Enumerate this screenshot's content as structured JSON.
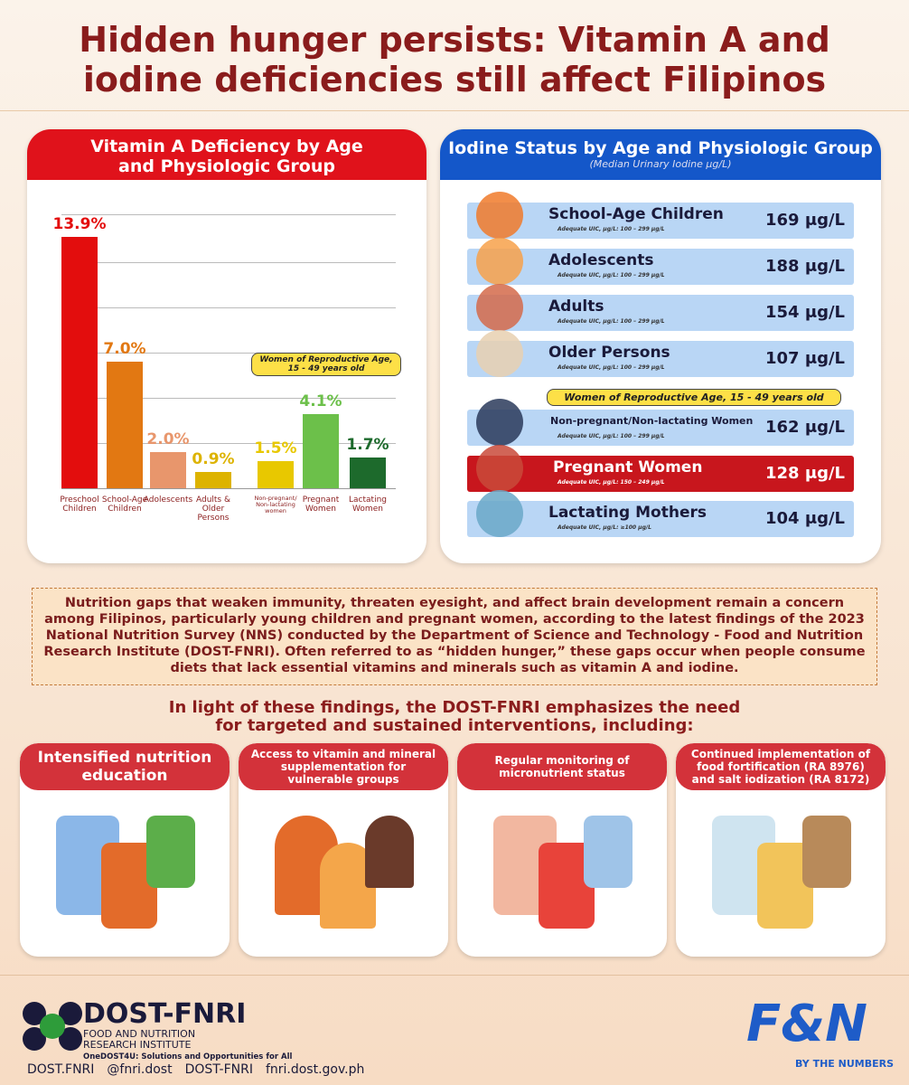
{
  "title": "Hidden hunger persists: Vitamin A and iodine deficiencies still affect Filipinos",
  "chart_data": {
    "type": "bar",
    "title": "Vitamin A Deficiency by Age and Physiologic Group",
    "categories": [
      "Preschool Children",
      "School-Age Children",
      "Adolescents",
      "Adults & Older Persons",
      "Non-pregnant/ Non-lactating women",
      "Pregnant Women",
      "Lactating Women"
    ],
    "values": [
      13.9,
      7.0,
      2.0,
      0.9,
      1.5,
      4.1,
      1.7
    ],
    "value_labels": [
      "13.9%",
      "7.0%",
      "2.0%",
      "0.9%",
      "1.5%",
      "4.1%",
      "1.7%"
    ],
    "colors": [
      "#e30d0d",
      "#e27812",
      "#e8966c",
      "#ddb300",
      "#e8c800",
      "#6cc04a",
      "#1d6a2c"
    ],
    "ylim": [
      0,
      15
    ],
    "annotation": "Women of Reproductive Age, 15 - 49 years old"
  },
  "iodine": {
    "title": "Iodine Status by Age and Physiologic Group",
    "subtitle": "(Median Urinary Iodine μg/L)",
    "rows": [
      {
        "name": "School-Age Children",
        "note": "Adequate UIC, μg/L: 100 – 299 μg/L",
        "value": "169 μg/L"
      },
      {
        "name": "Adolescents",
        "note": "Adequate UIC, μg/L: 100 – 299 μg/L",
        "value": "188 μg/L"
      },
      {
        "name": "Adults",
        "note": "Adequate UIC, μg/L: 100 – 299 μg/L",
        "value": "154 μg/L"
      },
      {
        "name": "Older Persons",
        "note": "Adequate UIC, μg/L: 100 – 299 μg/L",
        "value": "107 μg/L"
      },
      {
        "name": "Non-pregnant/Non-lactating Women",
        "note": "Adequate UIC, μg/L: 100 – 299 μg/L",
        "value": "162 μg/L"
      },
      {
        "name": "Pregnant Women",
        "note": "Adequate UIC, μg/L: 150 – 249 μg/L",
        "value": "128 μg/L"
      },
      {
        "name": "Lactating Mothers",
        "note": "Adequate UIC, μg/L: ≥100 μg/L",
        "value": "104 μg/L"
      }
    ],
    "annotation": "Women of Reproductive Age, 15 - 49 years old"
  },
  "paragraph": "Nutrition gaps that weaken immunity, threaten eyesight, and affect brain development remain a concern among Filipinos, particularly young children and pregnant women, according to the latest findings of the 2023 National Nutrition Survey (NNS) conducted by the Department of Science and Technology - Food and Nutrition Research Institute (DOST-FNRI). Often referred to as “hidden hunger,” these gaps occur when people consume diets that lack essential vitamins and minerals such as vitamin A and iodine.",
  "subheading": "In light of these findings, the DOST-FNRI emphasizes the need for targeted and sustained interventions, including:",
  "cards": [
    "Intensified nutrition education",
    "Access to vitamin and mineral supplementation for vulnerable groups",
    "Regular monitoring of micronutrient status",
    "Continued implementation of food fortification (RA 8976) and salt iodization (RA 8172)"
  ],
  "footer": {
    "logo": "DOST-FNRI",
    "institute": "FOOD AND NUTRITION RESEARCH INSTITUTE",
    "tagline": "OneDOST4U: Solutions and Opportunities for All",
    "socials": [
      "DOST.FNRI",
      "@fnri.dost",
      "DOST-FNRI",
      "fnri.dost.gov.ph"
    ],
    "brand": "F&N",
    "brand_sub": "BY THE NUMBERS"
  }
}
